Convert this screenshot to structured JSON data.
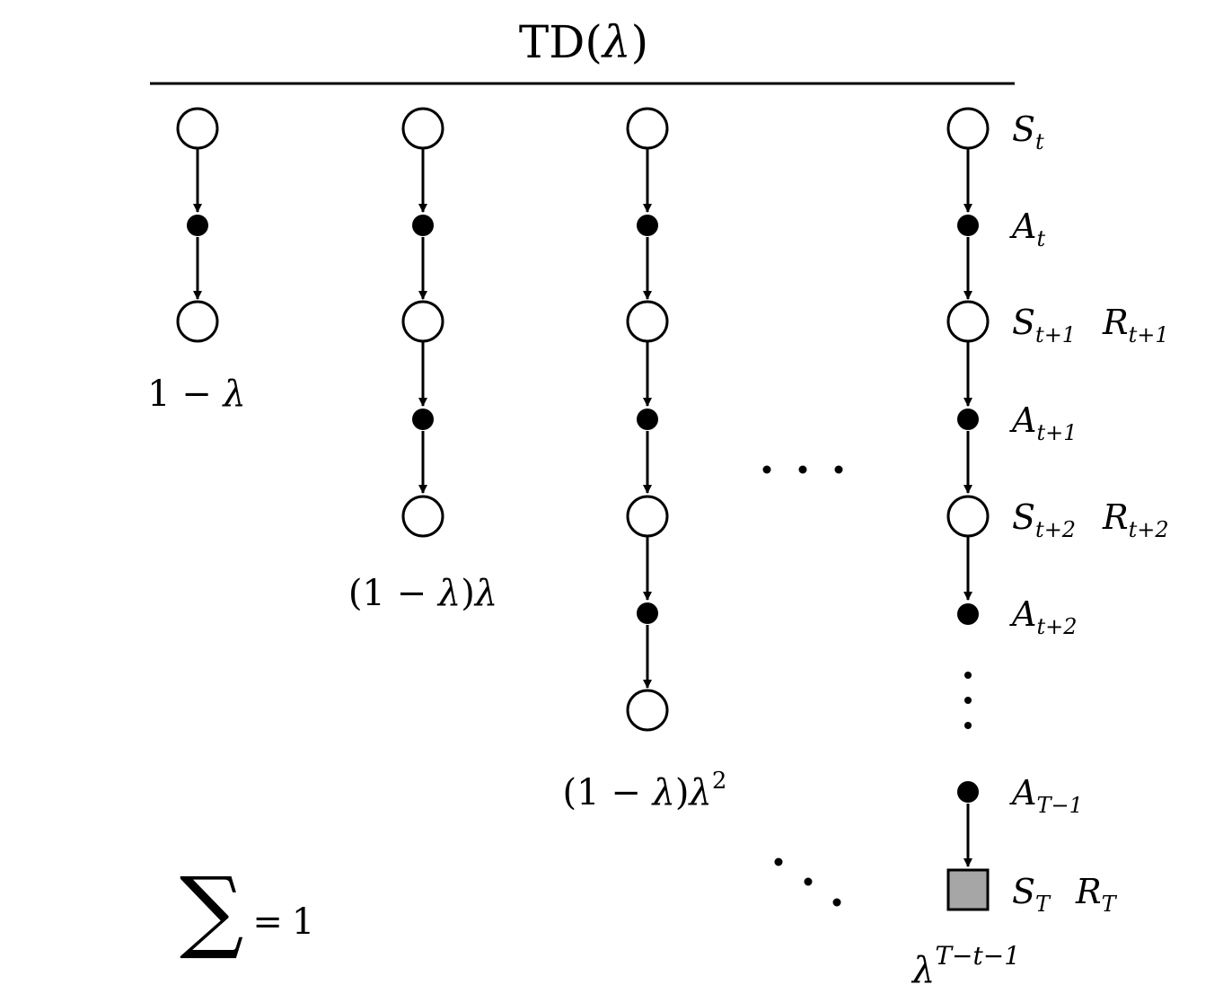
{
  "title": {
    "prefix": "TD(",
    "lambda": "λ",
    "suffix": ")"
  },
  "weights": {
    "w1": {
      "one": "1",
      "minus": "−",
      "lam": "λ"
    },
    "w2": {
      "open": "(1",
      "minus": "−",
      "lam": "λ",
      "close": ")",
      "lam2": "λ"
    },
    "w3": {
      "open": "(1",
      "minus": "−",
      "lam": "λ",
      "close": ")",
      "lam2": "λ",
      "exp": "2"
    },
    "wT": {
      "lam": "λ",
      "exp": "T−t−1"
    }
  },
  "sum": {
    "symbol": "∑",
    "equals": "=",
    "one": "1"
  },
  "labels": {
    "s_t": {
      "base": "S",
      "sub": "t"
    },
    "a_t": {
      "base": "A",
      "sub": "t"
    },
    "s_t1": {
      "base": "S",
      "sub": "t+1"
    },
    "r_t1": {
      "base": "R",
      "sub": "t+1"
    },
    "a_t1": {
      "base": "A",
      "sub": "t+1"
    },
    "s_t2": {
      "base": "S",
      "sub": "t+2"
    },
    "r_t2": {
      "base": "R",
      "sub": "t+2"
    },
    "a_t2": {
      "base": "A",
      "sub": "t+2"
    },
    "a_T1": {
      "base": "A",
      "sub": "T−1"
    },
    "s_T": {
      "base": "S",
      "sub": "T"
    },
    "r_T": {
      "base": "R",
      "sub": "T"
    }
  },
  "colors": {
    "ink": "#000000",
    "terminal_fill": "#a6a6a6"
  }
}
